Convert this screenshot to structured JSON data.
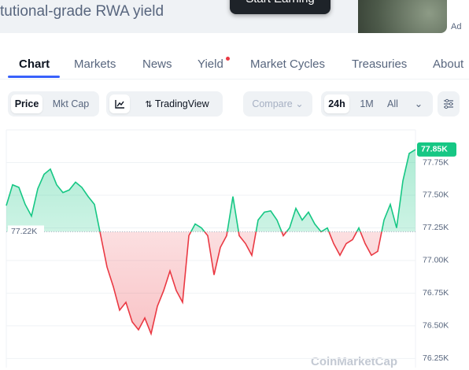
{
  "banner": {
    "text": "tutional-grade RWA yield",
    "button": "Start Earning",
    "ad": "Ad"
  },
  "tabs": [
    "Chart",
    "Markets",
    "News",
    "Yield",
    "Market Cycles",
    "Treasuries",
    "About"
  ],
  "controls": {
    "metric": [
      "Price",
      "Mkt Cap"
    ],
    "tradingview": "TradingView",
    "compare": "Compare",
    "ranges": [
      "24h",
      "1M",
      "All"
    ]
  },
  "chart_data": {
    "type": "line",
    "watermark": "CoinMarketCap",
    "values": [
      77420,
      77580,
      77560,
      77430,
      77340,
      77550,
      77660,
      77700,
      77580,
      77520,
      77540,
      77600,
      77560,
      77490,
      77430,
      77190,
      76950,
      76800,
      76620,
      76680,
      76530,
      76470,
      76560,
      76440,
      76650,
      76770,
      76920,
      76770,
      76680,
      77190,
      77280,
      77250,
      77190,
      76890,
      77100,
      77190,
      77490,
      77190,
      77130,
      77040,
      77310,
      77370,
      77380,
      77310,
      77190,
      77250,
      77400,
      77310,
      77370,
      77280,
      77220,
      77250,
      77130,
      77040,
      77130,
      77160,
      77250,
      77130,
      77040,
      77070,
      77310,
      77430,
      77250,
      77610,
      77820,
      77850
    ],
    "baseline": {
      "value": 77220,
      "label": "77.22K"
    },
    "price_tag": {
      "value": 77850,
      "label": "77.85K"
    },
    "up_color": "#16c784",
    "down_color": "#ea3943",
    "ylim": [
      76180,
      78000
    ],
    "yticks": [
      {
        "value": 76250,
        "label": "76.25K"
      },
      {
        "value": 76500,
        "label": "76.50K"
      },
      {
        "value": 76750,
        "label": "76.75K"
      },
      {
        "value": 77000,
        "label": "77.00K"
      },
      {
        "value": 77250,
        "label": "77.25K"
      },
      {
        "value": 77500,
        "label": "77.50K"
      },
      {
        "value": 77750,
        "label": "77.75K"
      }
    ],
    "grid": true
  }
}
